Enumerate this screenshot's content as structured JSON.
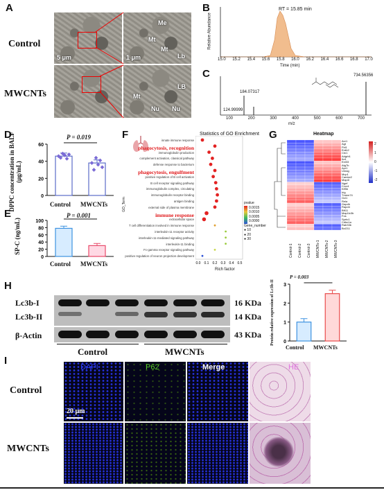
{
  "panels": {
    "A": {
      "letter": "A",
      "row1": "Control",
      "row2": "MWCNTs",
      "scale1": "5 μm",
      "scale2": "1 μm",
      "labels": [
        "Me",
        "Mt",
        "Mt",
        "Lb",
        "LB",
        "Mt",
        "Nu",
        "Nu"
      ]
    },
    "B": {
      "letter": "B",
      "peak_label": "RT = 15.85 min",
      "xlabel": "Time (min)",
      "ylabel": "Relative Abundance",
      "xticks": [
        "15.0",
        "15.2",
        "15.4",
        "15.6",
        "15.8",
        "16.0",
        "16.2",
        "16.4",
        "16.6",
        "16.8",
        "17.0"
      ]
    },
    "C": {
      "letter": "C",
      "ylabel": "Relative Abundance",
      "xlabel": "m/z",
      "peaks": [
        "734.56356",
        "184.07317",
        "124.99999"
      ],
      "xticks": [
        "100",
        "200",
        "300",
        "400",
        "500",
        "600",
        "700"
      ]
    },
    "D": {
      "letter": "D",
      "ylabel": "DPPC concentration in BALF (μg/mL)",
      "p": "P = 0.019",
      "cats": [
        "Control",
        "MWCNTs"
      ],
      "yticks": [
        "0",
        "20",
        "40",
        "60"
      ]
    },
    "E": {
      "letter": "E",
      "ylabel": "SP-C (ng/mL)",
      "p": "P = 0.001",
      "cats": [
        "Control",
        "MWCNTs"
      ],
      "yticks": [
        "0",
        "20",
        "40",
        "60",
        "80",
        "100"
      ]
    },
    "F": {
      "letter": "F",
      "title": "Statistics of GO Enrichment",
      "xlabel": "Rich factor",
      "ylabel": "GO_Term",
      "terms": [
        "innate immune response",
        "phagocytosis, recognition",
        "immunoglobulin production",
        "complement activation, classical pathway",
        "defense response to bacterium",
        "phagocytosis, engulfment",
        "positive regulation of B cell activation",
        "B cell receptor signaling pathway",
        "immunoglobulin complex, circulating",
        "immunoglobulin receptor binding",
        "antigen binding",
        "external side of plasma membrane",
        "immune response",
        "extracellular space",
        "T cell differentiation involved in immune response",
        "interleukin-11 receptor activity",
        "interleukin-11-mediated signaling pathway",
        "interleukin-11 binding",
        "Fc-gamma receptor signaling pathway",
        "positive regulation of neuron projection development"
      ],
      "highlight": [
        "phagocytosis, recognition",
        "phagocytosis, engulfment",
        "immune response"
      ],
      "legend_p": [
        "pvalue",
        "0.0015",
        "0.0010",
        "0.0005",
        "0.0000"
      ],
      "legend_gene": [
        "Gene_number",
        "10",
        "20",
        "30"
      ],
      "xticks": [
        "0.0",
        "0.1",
        "0.2",
        "0.3",
        "0.4",
        "0.5"
      ]
    },
    "G": {
      "letter": "G",
      "title": "Heatmap",
      "genes": [
        "Acr1",
        "Agt",
        "Fbl1",
        "Erdb2",
        "Ctn1",
        "Adgrb1",
        "Itz4",
        "Ext33",
        "Atg7b",
        "Apr1",
        "Umag",
        "Mcp1",
        "Camke2",
        "Map4l",
        "Ngef",
        "Cxcr4",
        "Kif5b",
        "Irig",
        "Tmem74",
        "Gcl1",
        "Rela",
        "Gapdh",
        "Rapd4",
        "Bft11",
        "Map1lc3b",
        "Fos",
        "Sprtc1",
        "Cdkn1a",
        "Rab33b",
        "Bcl211"
      ],
      "samples": [
        "Control-1",
        "Control-2",
        "Control-3",
        "MWCNTs-1",
        "MWCNTs-2",
        "MWCNTs-3"
      ],
      "scale": [
        "2",
        "1",
        "0",
        "-1",
        "-2"
      ]
    },
    "H": {
      "letter": "H",
      "bands": [
        "Lc3b-I",
        "Lc3b-II",
        "β-Actin"
      ],
      "sizes": [
        "16 KDa",
        "14 KDa",
        "43 KDa"
      ],
      "groups": [
        "Control",
        "MWCNTs"
      ],
      "ylabel": "Protein relative expression of Lc3b-II",
      "p": "P = 0.003",
      "yticks": [
        "0",
        "1",
        "2",
        "3"
      ],
      "cats": [
        "Control",
        "MWCNTs"
      ]
    },
    "I": {
      "letter": "I",
      "cols": [
        "DAPI",
        "P62",
        "Merge",
        "HE"
      ],
      "rows": [
        "Control",
        "MWCNTs"
      ],
      "scale": "20 μm"
    }
  },
  "chart_data": [
    {
      "type": "bar",
      "title": "",
      "categories": [
        "Control",
        "MWCNTs"
      ],
      "values": [
        46,
        38
      ],
      "ylabel": "DPPC concentration in BALF (μg/mL)",
      "ylim": [
        0,
        60
      ]
    },
    {
      "type": "bar",
      "title": "",
      "categories": [
        "Control",
        "MWCNTs"
      ],
      "values": [
        78,
        30
      ],
      "ylabel": "SP-C (ng/mL)",
      "ylim": [
        0,
        100
      ]
    },
    {
      "type": "bar",
      "title": "",
      "categories": [
        "Control",
        "MWCNTs"
      ],
      "values": [
        1.0,
        2.5
      ],
      "ylabel": "Protein relative expression of Lc3b-II",
      "ylim": [
        0,
        3
      ]
    },
    {
      "type": "scatter",
      "title": "Statistics of GO Enrichment",
      "xlabel": "Rich factor",
      "ylabel": "GO_Term",
      "x": [
        0.05,
        0.2,
        0.13,
        0.17,
        0.15,
        0.2,
        0.18,
        0.21,
        0.22,
        0.23,
        0.22,
        0.2,
        0.1,
        0.07,
        0.2,
        0.33,
        0.33,
        0.33,
        0.2,
        0.05
      ],
      "y": [
        "innate immune response",
        "phagocytosis, recognition",
        "immunoglobulin production",
        "complement activation, classical pathway",
        "defense response to bacterium",
        "phagocytosis, engulfment",
        "positive regulation of B cell activation",
        "B cell receptor signaling pathway",
        "immunoglobulin complex, circulating",
        "immunoglobulin receptor binding",
        "antigen binding",
        "external side of plasma membrane",
        "immune response",
        "extracellular space",
        "T cell differentiation involved in immune response",
        "interleukin-11 receptor activity",
        "interleukin-11-mediated signaling pathway",
        "interleukin-11 binding",
        "Fc-gamma receptor signaling pathway",
        "positive regulation of neuron projection development"
      ]
    }
  ]
}
